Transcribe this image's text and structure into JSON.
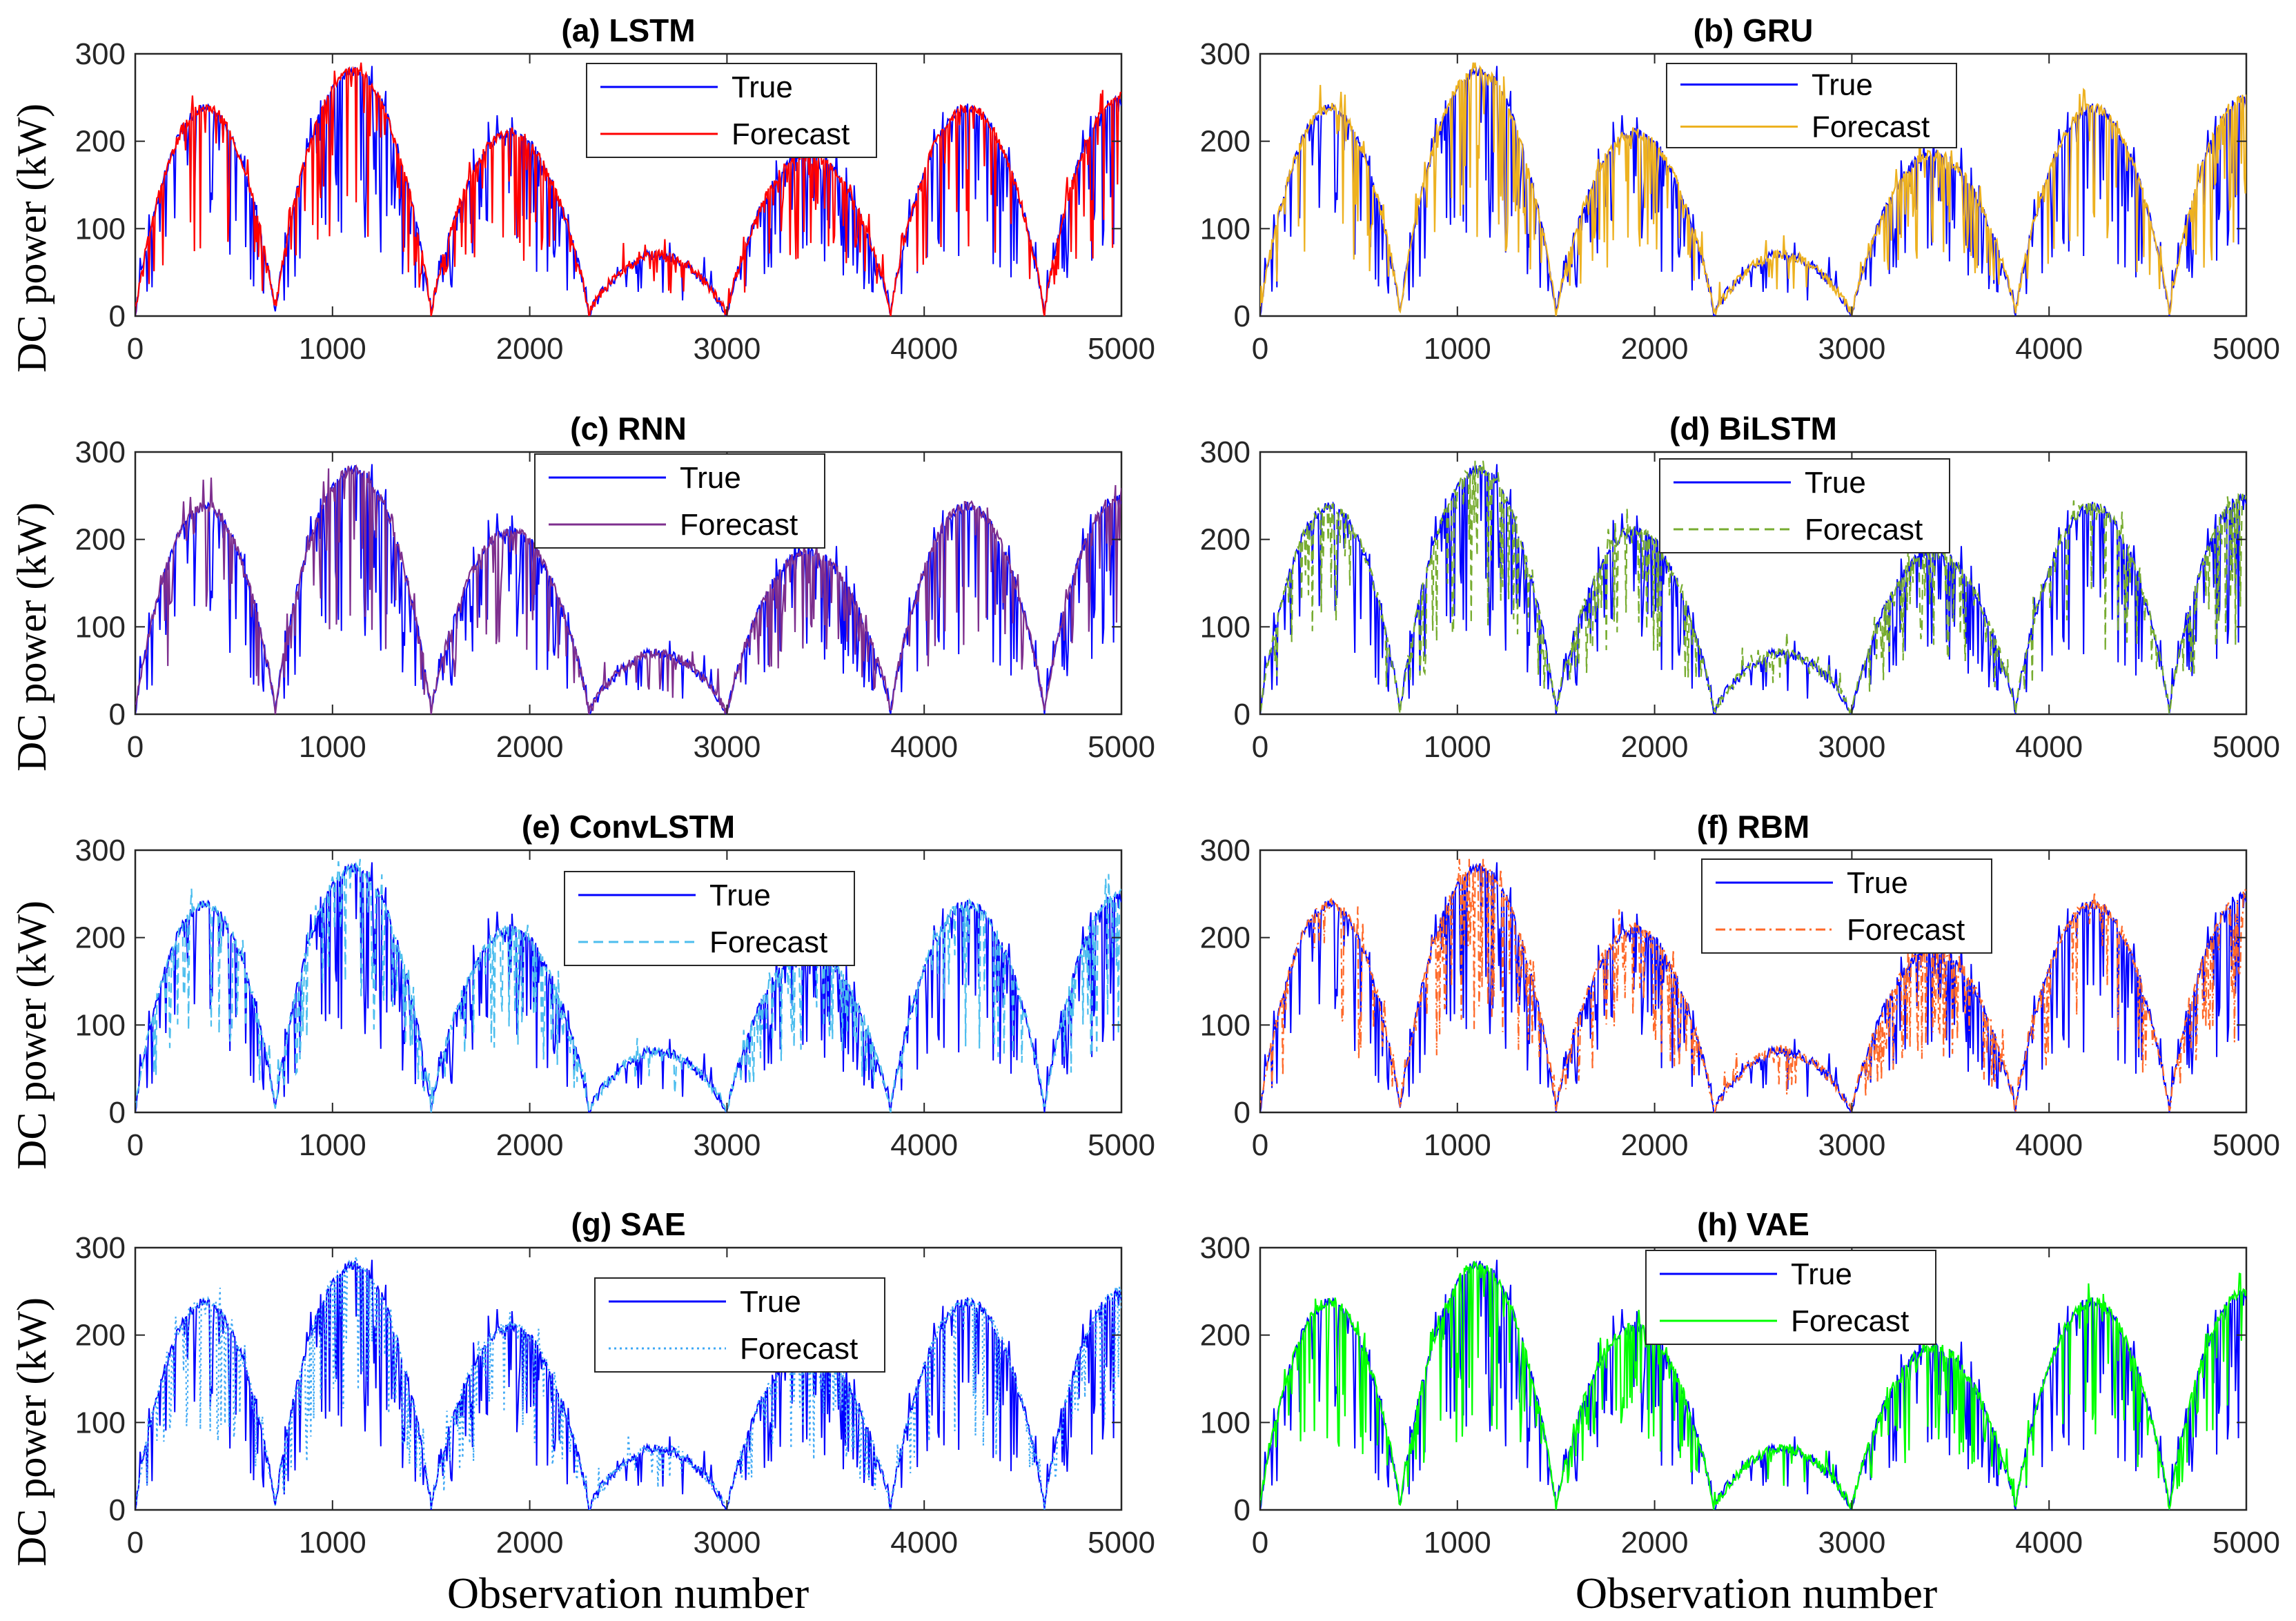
{
  "figure": {
    "ylabel": "DC power (kW)",
    "xlabel": "Observation number"
  },
  "chart_data": [
    {
      "id": "a",
      "type": "line",
      "title": "(a) LSTM",
      "xlim": [
        0,
        5000
      ],
      "ylim": [
        0,
        300
      ],
      "xticks": [
        0,
        1000,
        2000,
        3000,
        4000,
        5000
      ],
      "yticks": [
        0,
        100,
        200,
        300
      ],
      "legend": {
        "position": "top-center",
        "entries": [
          "True",
          "Forecast"
        ]
      },
      "series": [
        {
          "name": "True",
          "color": "#0000ff",
          "dash": "solid"
        },
        {
          "name": "Forecast",
          "color": "#ff0000",
          "dash": "solid"
        }
      ]
    },
    {
      "id": "b",
      "type": "line",
      "title": "(b) GRU",
      "xlim": [
        0,
        5000
      ],
      "ylim": [
        0,
        300
      ],
      "xticks": [
        0,
        1000,
        2000,
        3000,
        4000,
        5000
      ],
      "yticks": [
        0,
        100,
        200,
        300
      ],
      "legend": {
        "position": "top-center",
        "entries": [
          "True",
          "Forecast"
        ]
      },
      "series": [
        {
          "name": "True",
          "color": "#0000ff",
          "dash": "solid"
        },
        {
          "name": "Forecast",
          "color": "#edb120",
          "dash": "solid"
        }
      ]
    },
    {
      "id": "c",
      "type": "line",
      "title": "(c) RNN",
      "xlim": [
        0,
        5000
      ],
      "ylim": [
        0,
        300
      ],
      "xticks": [
        0,
        1000,
        2000,
        3000,
        4000,
        5000
      ],
      "yticks": [
        0,
        100,
        200,
        300
      ],
      "legend": {
        "position": "top-center",
        "entries": [
          "True",
          "Forecast"
        ]
      },
      "series": [
        {
          "name": "True",
          "color": "#0000ff",
          "dash": "solid"
        },
        {
          "name": "Forecast",
          "color": "#7e2f8e",
          "dash": "solid"
        }
      ]
    },
    {
      "id": "d",
      "type": "line",
      "title": "(d) BiLSTM",
      "xlim": [
        0,
        5000
      ],
      "ylim": [
        0,
        300
      ],
      "xticks": [
        0,
        1000,
        2000,
        3000,
        4000,
        5000
      ],
      "yticks": [
        0,
        100,
        200,
        300
      ],
      "legend": {
        "position": "top-center",
        "entries": [
          "True",
          "Forecast"
        ]
      },
      "series": [
        {
          "name": "True",
          "color": "#0000ff",
          "dash": "solid"
        },
        {
          "name": "Forecast",
          "color": "#77ac30",
          "dash": "dashed"
        }
      ]
    },
    {
      "id": "e",
      "type": "line",
      "title": "(e) ConvLSTM",
      "xlim": [
        0,
        5000
      ],
      "ylim": [
        0,
        300
      ],
      "xticks": [
        0,
        1000,
        2000,
        3000,
        4000,
        5000
      ],
      "yticks": [
        0,
        100,
        200,
        300
      ],
      "legend": {
        "position": "top-center",
        "entries": [
          "True",
          "Forecast"
        ]
      },
      "series": [
        {
          "name": "True",
          "color": "#0000ff",
          "dash": "solid"
        },
        {
          "name": "Forecast",
          "color": "#4dbeee",
          "dash": "dashed"
        }
      ]
    },
    {
      "id": "f",
      "type": "line",
      "title": "(f) RBM",
      "xlim": [
        0,
        5000
      ],
      "ylim": [
        0,
        300
      ],
      "xticks": [
        0,
        1000,
        2000,
        3000,
        4000,
        5000
      ],
      "yticks": [
        0,
        100,
        200,
        300
      ],
      "legend": {
        "position": "top-center",
        "entries": [
          "True",
          "Forecast"
        ]
      },
      "series": [
        {
          "name": "True",
          "color": "#0000ff",
          "dash": "solid"
        },
        {
          "name": "Forecast",
          "color": "#ff6929",
          "dash": "dashdot"
        }
      ]
    },
    {
      "id": "g",
      "type": "line",
      "title": "(g) SAE",
      "xlim": [
        0,
        5000
      ],
      "ylim": [
        0,
        300
      ],
      "xticks": [
        0,
        1000,
        2000,
        3000,
        4000,
        5000
      ],
      "yticks": [
        0,
        100,
        200,
        300
      ],
      "legend": {
        "position": "top-center",
        "entries": [
          "True",
          "Forecast"
        ]
      },
      "series": [
        {
          "name": "True",
          "color": "#0000ff",
          "dash": "solid"
        },
        {
          "name": "Forecast",
          "color": "#3fa9f5",
          "dash": "dotted"
        }
      ]
    },
    {
      "id": "h",
      "type": "line",
      "title": "(h) VAE",
      "xlim": [
        0,
        5000
      ],
      "ylim": [
        0,
        300
      ],
      "xticks": [
        0,
        1000,
        2000,
        3000,
        4000,
        5000
      ],
      "yticks": [
        0,
        100,
        200,
        300
      ],
      "legend": {
        "position": "top-center",
        "entries": [
          "True",
          "Forecast"
        ]
      },
      "series": [
        {
          "name": "True",
          "color": "#0000ff",
          "dash": "solid"
        },
        {
          "name": "Forecast",
          "color": "#00ff00",
          "dash": "solid"
        }
      ]
    }
  ]
}
